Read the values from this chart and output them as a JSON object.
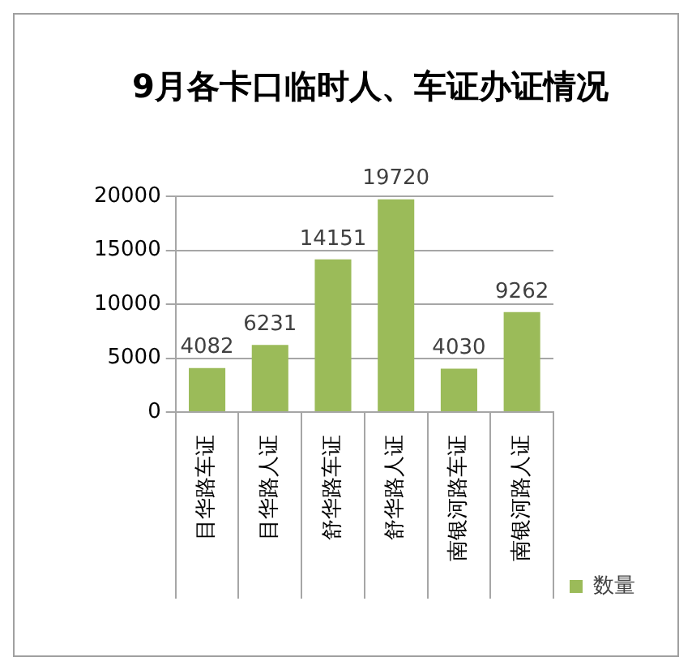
{
  "chart_data": {
    "type": "bar",
    "title": "9月各卡口临时人、车证办证情况",
    "categories": [
      "目华路车证",
      "目华路人证",
      "舒华路车证",
      "舒华路人证",
      "南银河路车证",
      "南银河路人证"
    ],
    "series": [
      {
        "name": "数量",
        "color": "#9bbb59",
        "values": [
          4082,
          6231,
          14151,
          19720,
          4030,
          9262
        ]
      }
    ],
    "ylim": [
      0,
      20000
    ],
    "yticks": [
      0,
      5000,
      10000,
      15000,
      20000
    ],
    "grid": "y",
    "legend": "right",
    "data_labels": true
  }
}
